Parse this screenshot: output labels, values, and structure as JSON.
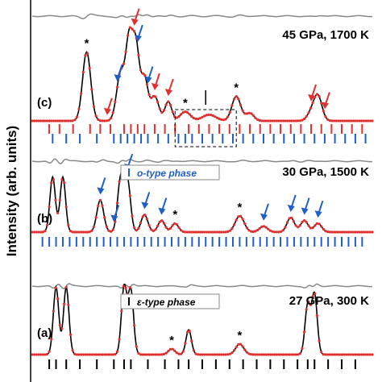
{
  "chart_data": {
    "type": "line",
    "ylabel": "Intensity (arb. units)",
    "panels": [
      {
        "label": "(c)",
        "condition": "45 GPa, 1700 K",
        "peaks": [
          [
            0.16,
            0.9,
            0.012
          ],
          [
            0.26,
            0.62,
            0.012
          ],
          [
            0.285,
            1.0,
            0.01
          ],
          [
            0.305,
            0.95,
            0.01
          ],
          [
            0.33,
            0.55,
            0.01
          ],
          [
            0.36,
            0.32,
            0.012
          ],
          [
            0.4,
            0.25,
            0.01
          ],
          [
            0.45,
            0.12,
            0.015
          ],
          [
            0.52,
            0.08,
            0.02
          ],
          [
            0.6,
            0.32,
            0.013
          ],
          [
            0.64,
            0.1,
            0.012
          ],
          [
            0.82,
            0.1,
            0.012
          ],
          [
            0.84,
            0.32,
            0.012
          ]
        ],
        "stars": [
          0.16,
          0.45,
          0.6
        ],
        "red_arrows": [
          0.22,
          0.3,
          0.36,
          0.4,
          0.82,
          0.86
        ],
        "blue_arrows": [
          0.25,
          0.31,
          0.34
        ],
        "ticks_red": [
          0.05,
          0.08,
          0.12,
          0.17,
          0.2,
          0.23,
          0.27,
          0.29,
          0.31,
          0.33,
          0.36,
          0.39,
          0.42,
          0.46,
          0.49,
          0.52,
          0.55,
          0.58,
          0.61,
          0.64,
          0.67,
          0.7,
          0.73,
          0.76,
          0.79,
          0.82,
          0.85,
          0.88,
          0.91,
          0.94,
          0.97
        ],
        "ticks_blue": [
          0.06,
          0.1,
          0.14,
          0.19,
          0.24,
          0.26,
          0.28,
          0.3,
          0.32,
          0.34,
          0.37,
          0.4,
          0.43,
          0.45,
          0.47,
          0.5,
          0.53,
          0.56,
          0.59,
          0.62,
          0.65,
          0.68,
          0.71,
          0.74,
          0.77,
          0.8,
          0.83,
          0.86,
          0.89,
          0.92,
          0.95,
          0.98
        ]
      },
      {
        "label": "(b)",
        "condition": "30 GPa, 1500 K",
        "legend": "o-type phase",
        "legend_color": "#1f5fc8",
        "peaks": [
          [
            0.06,
            0.95,
            0.008
          ],
          [
            0.09,
            0.95,
            0.008
          ],
          [
            0.2,
            0.55,
            0.01
          ],
          [
            0.26,
            0.92,
            0.009
          ],
          [
            0.28,
            0.88,
            0.009
          ],
          [
            0.33,
            0.3,
            0.01
          ],
          [
            0.38,
            0.2,
            0.01
          ],
          [
            0.42,
            0.15,
            0.01
          ],
          [
            0.61,
            0.28,
            0.013
          ],
          [
            0.68,
            0.1,
            0.012
          ],
          [
            0.76,
            0.25,
            0.011
          ],
          [
            0.8,
            0.2,
            0.011
          ],
          [
            0.84,
            0.15,
            0.011
          ]
        ],
        "stars": [
          0.42,
          0.61
        ],
        "blue_arrows": [
          0.2,
          0.24,
          0.28,
          0.33,
          0.38,
          0.68,
          0.76,
          0.8,
          0.84
        ],
        "ticks_blue": [
          0.03,
          0.05,
          0.07,
          0.09,
          0.11,
          0.13,
          0.15,
          0.17,
          0.19,
          0.21,
          0.23,
          0.25,
          0.27,
          0.29,
          0.31,
          0.33,
          0.35,
          0.37,
          0.39,
          0.41,
          0.43,
          0.45,
          0.47,
          0.49,
          0.51,
          0.53,
          0.55,
          0.57,
          0.59,
          0.61,
          0.63,
          0.65,
          0.67,
          0.69,
          0.71,
          0.73,
          0.75,
          0.77,
          0.79,
          0.81,
          0.83,
          0.85,
          0.87,
          0.89,
          0.91,
          0.93,
          0.95,
          0.97
        ]
      },
      {
        "label": "(a)",
        "condition": "27 GPa, 300 K",
        "legend": "ε-type phase",
        "legend_color": "#000000",
        "peaks": [
          [
            0.07,
            0.95,
            0.008
          ],
          [
            0.1,
            0.95,
            0.008
          ],
          [
            0.27,
            0.95,
            0.008
          ],
          [
            0.29,
            0.9,
            0.008
          ],
          [
            0.41,
            0.08,
            0.01
          ],
          [
            0.46,
            0.35,
            0.008
          ],
          [
            0.61,
            0.15,
            0.012
          ],
          [
            0.81,
            0.7,
            0.008
          ],
          [
            0.83,
            0.85,
            0.008
          ]
        ],
        "stars": [
          0.41,
          0.61
        ],
        "ticks_black": [
          0.05,
          0.07,
          0.1,
          0.14,
          0.19,
          0.24,
          0.27,
          0.29,
          0.34,
          0.39,
          0.43,
          0.46,
          0.5,
          0.54,
          0.58,
          0.62,
          0.66,
          0.7,
          0.74,
          0.78,
          0.81,
          0.83,
          0.87,
          0.91,
          0.95
        ]
      }
    ],
    "colors": {
      "observed": "#e03030",
      "calculated": "#000000",
      "difference": "#888888",
      "tick_red": "#e03030",
      "tick_blue": "#1f5fc8",
      "tick_black": "#000000"
    }
  }
}
